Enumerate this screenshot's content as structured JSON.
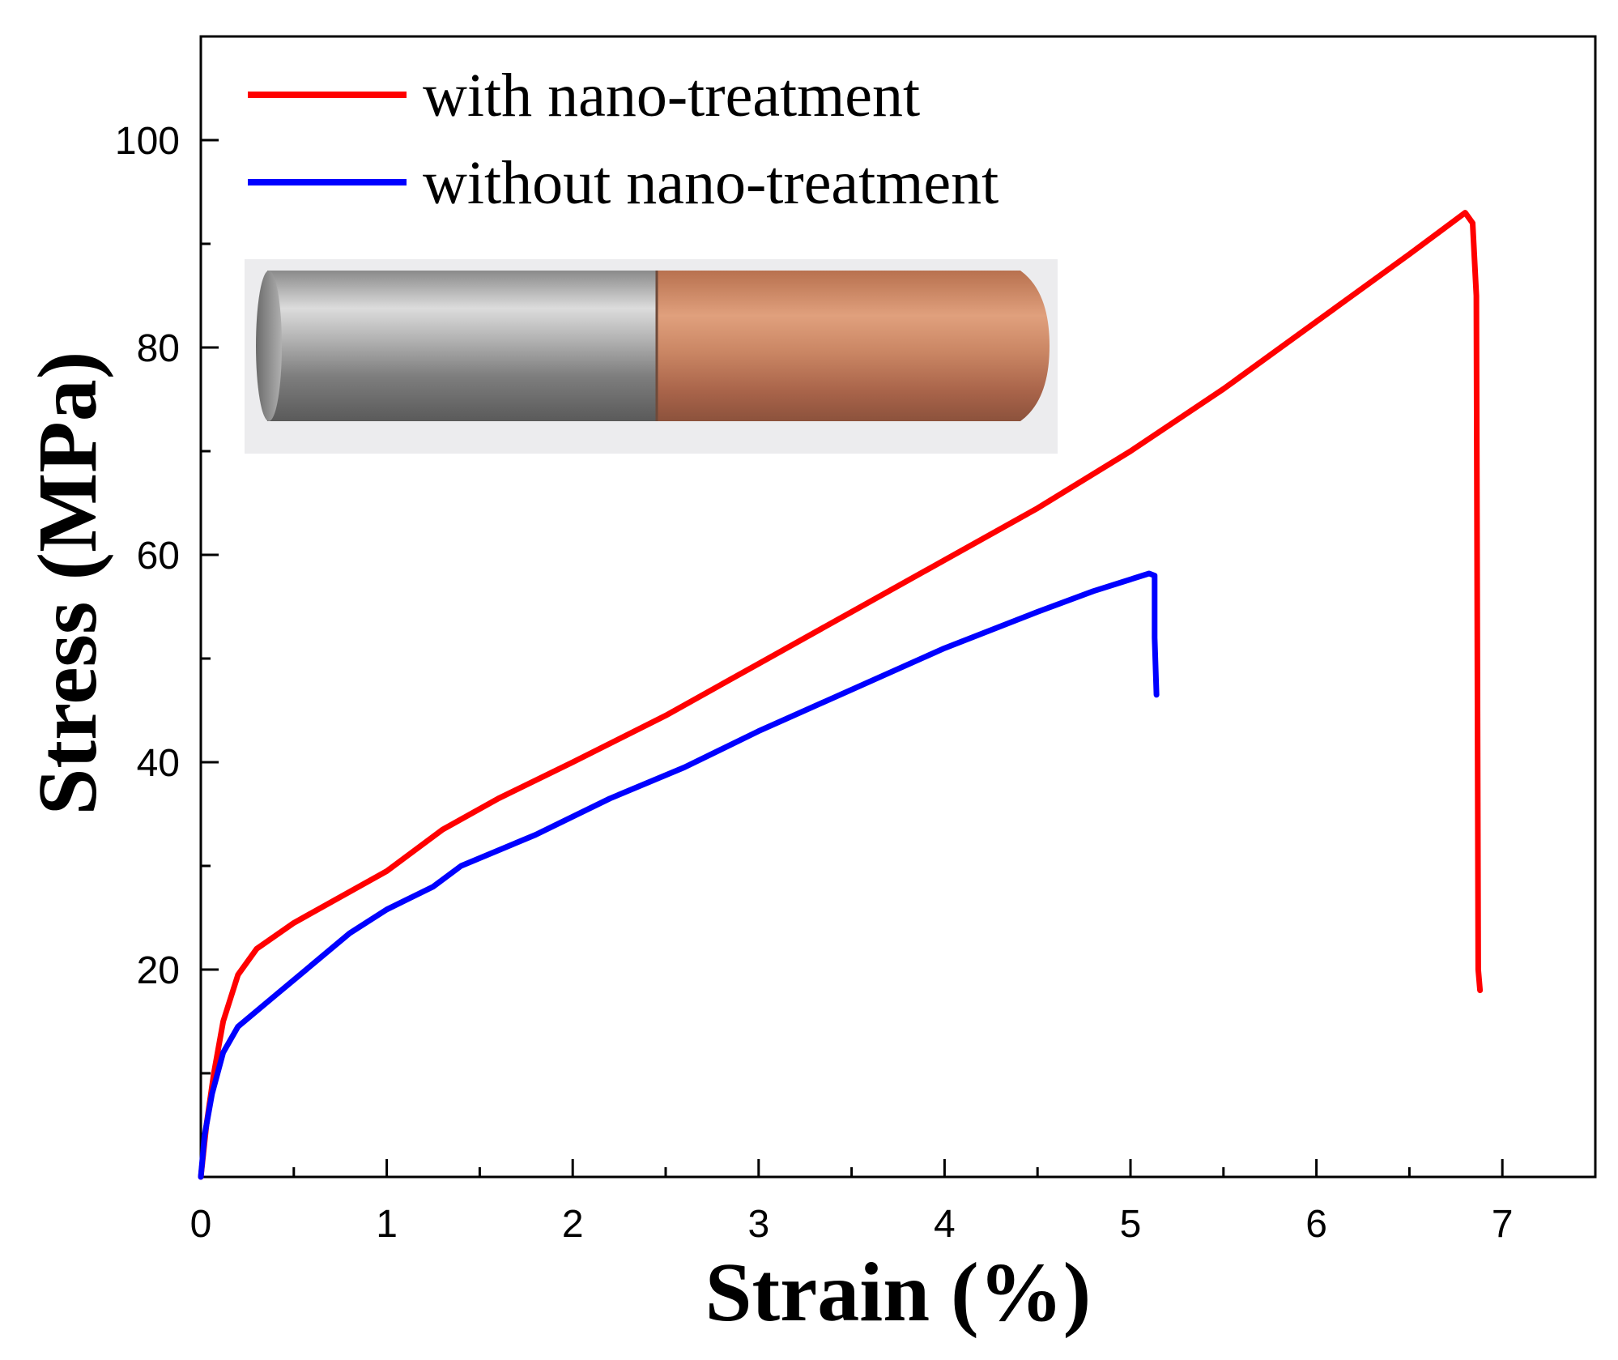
{
  "chart_data": {
    "type": "line",
    "xlabel": "Strain (%)",
    "ylabel": "Stress (MPa)",
    "xlim": [
      0,
      7.5
    ],
    "ylim": [
      0,
      110
    ],
    "x_ticks": [
      "0",
      "1",
      "2",
      "3",
      "4",
      "5",
      "6",
      "7"
    ],
    "y_ticks": [
      "20",
      "40",
      "60",
      "80",
      "100"
    ],
    "x_minor_step": 0.5,
    "y_minor_step": 10,
    "legend_position": "top-left",
    "series": [
      {
        "name": "with nano-treatment",
        "color": "#ff0000",
        "points": [
          [
            0,
            0
          ],
          [
            0.03,
            5
          ],
          [
            0.07,
            10
          ],
          [
            0.12,
            15
          ],
          [
            0.2,
            19.5
          ],
          [
            0.3,
            22
          ],
          [
            0.5,
            24.5
          ],
          [
            0.7,
            26.5
          ],
          [
            1.0,
            29.5
          ],
          [
            1.3,
            33.5
          ],
          [
            1.6,
            36.5
          ],
          [
            2.0,
            40
          ],
          [
            2.5,
            44.5
          ],
          [
            3.0,
            49.5
          ],
          [
            3.5,
            54.5
          ],
          [
            4.0,
            59.5
          ],
          [
            4.5,
            64.5
          ],
          [
            5.0,
            70
          ],
          [
            5.5,
            76
          ],
          [
            6.0,
            82.5
          ],
          [
            6.5,
            89
          ],
          [
            6.8,
            93
          ],
          [
            6.84,
            92
          ],
          [
            6.86,
            85
          ],
          [
            6.87,
            20
          ],
          [
            6.88,
            18
          ]
        ]
      },
      {
        "name": "without nano-treatment",
        "color": "#0000ff",
        "points": [
          [
            0,
            0
          ],
          [
            0.02,
            4
          ],
          [
            0.06,
            8
          ],
          [
            0.12,
            12
          ],
          [
            0.2,
            14.5
          ],
          [
            0.4,
            17.5
          ],
          [
            0.6,
            20.5
          ],
          [
            0.8,
            23.5
          ],
          [
            1.0,
            25.8
          ],
          [
            1.25,
            28
          ],
          [
            1.4,
            30
          ],
          [
            1.8,
            33
          ],
          [
            2.2,
            36.5
          ],
          [
            2.6,
            39.5
          ],
          [
            3.0,
            43
          ],
          [
            3.5,
            47
          ],
          [
            4.0,
            51
          ],
          [
            4.5,
            54.5
          ],
          [
            4.8,
            56.5
          ],
          [
            5.1,
            58.2
          ],
          [
            5.13,
            58
          ],
          [
            5.13,
            52
          ],
          [
            5.14,
            46.5
          ]
        ]
      }
    ]
  },
  "inset": {
    "description_icon": "metal-rod-photo",
    "steel_color": "#a6a6a6",
    "copper_color": "#c7805f"
  }
}
